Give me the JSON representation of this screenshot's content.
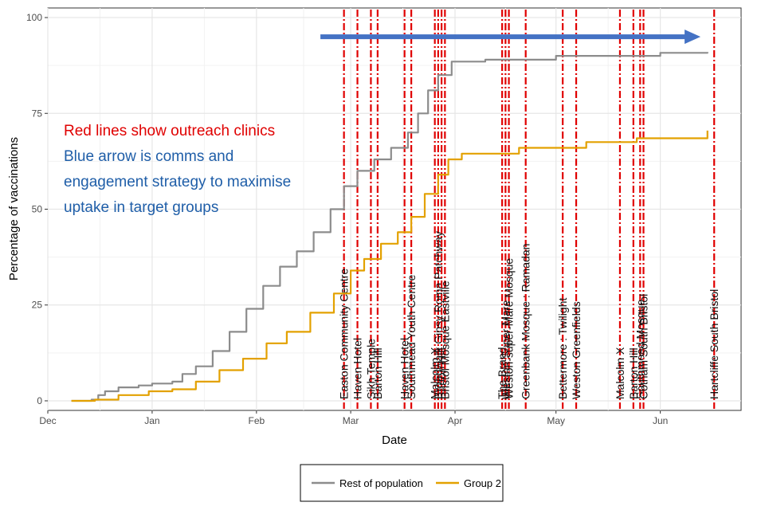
{
  "chart_data": {
    "type": "line",
    "title": "",
    "xlabel": "Date",
    "ylabel": "Percentage of vaccinations",
    "x_range": [
      "2020-12-01",
      "2021-06-25"
    ],
    "ylim": [
      -2.5,
      102.5
    ],
    "x_ticks": [
      {
        "date": "2020-12-01",
        "label": "Dec"
      },
      {
        "date": "2021-01-01",
        "label": "Jan"
      },
      {
        "date": "2021-02-01",
        "label": "Feb"
      },
      {
        "date": "2021-03-01",
        "label": "Mar"
      },
      {
        "date": "2021-04-01",
        "label": "Apr"
      },
      {
        "date": "2021-05-01",
        "label": "May"
      },
      {
        "date": "2021-06-01",
        "label": "Jun"
      }
    ],
    "y_ticks": [
      0,
      25,
      50,
      75,
      100
    ],
    "grid": true,
    "legend_position": "bottom",
    "series": [
      {
        "name": "Rest of population",
        "color": "#8c8c8c",
        "points": [
          [
            "2020-12-08",
            0
          ],
          [
            "2020-12-14",
            0.3
          ],
          [
            "2020-12-16",
            1.5
          ],
          [
            "2020-12-18",
            2.5
          ],
          [
            "2020-12-22",
            3.5
          ],
          [
            "2020-12-28",
            4
          ],
          [
            "2021-01-01",
            4.5
          ],
          [
            "2021-01-07",
            5
          ],
          [
            "2021-01-10",
            7
          ],
          [
            "2021-01-14",
            9
          ],
          [
            "2021-01-19",
            13
          ],
          [
            "2021-01-24",
            18
          ],
          [
            "2021-01-29",
            24
          ],
          [
            "2021-02-03",
            30
          ],
          [
            "2021-02-08",
            35
          ],
          [
            "2021-02-13",
            39
          ],
          [
            "2021-02-18",
            44
          ],
          [
            "2021-02-23",
            50
          ],
          [
            "2021-02-27",
            56
          ],
          [
            "2021-03-03",
            60
          ],
          [
            "2021-03-08",
            63
          ],
          [
            "2021-03-13",
            66
          ],
          [
            "2021-03-18",
            70
          ],
          [
            "2021-03-21",
            75
          ],
          [
            "2021-03-24",
            81
          ],
          [
            "2021-03-27",
            85
          ],
          [
            "2021-03-31",
            88.5
          ],
          [
            "2021-04-10",
            89
          ],
          [
            "2021-05-01",
            90
          ],
          [
            "2021-06-01",
            90.8
          ],
          [
            "2021-06-15",
            91
          ]
        ]
      },
      {
        "name": "Group 2",
        "color": "#e3a100",
        "points": [
          [
            "2020-12-08",
            0
          ],
          [
            "2020-12-15",
            0.3
          ],
          [
            "2020-12-22",
            1.5
          ],
          [
            "2020-12-31",
            2.5
          ],
          [
            "2021-01-07",
            3
          ],
          [
            "2021-01-14",
            5
          ],
          [
            "2021-01-21",
            8
          ],
          [
            "2021-01-28",
            11
          ],
          [
            "2021-02-04",
            15
          ],
          [
            "2021-02-10",
            18
          ],
          [
            "2021-02-17",
            23
          ],
          [
            "2021-02-24",
            28
          ],
          [
            "2021-03-01",
            34
          ],
          [
            "2021-03-05",
            37
          ],
          [
            "2021-03-10",
            41
          ],
          [
            "2021-03-15",
            44
          ],
          [
            "2021-03-19",
            48
          ],
          [
            "2021-03-23",
            54
          ],
          [
            "2021-03-27",
            59
          ],
          [
            "2021-03-30",
            63
          ],
          [
            "2021-04-03",
            64.5
          ],
          [
            "2021-04-20",
            66
          ],
          [
            "2021-05-10",
            67.5
          ],
          [
            "2021-05-25",
            68.5
          ],
          [
            "2021-06-15",
            70.5
          ]
        ]
      }
    ],
    "outreach_clinics": {
      "color": "#e00000",
      "clinics": [
        {
          "date": "2021-02-27",
          "label": "Easton Community Centre"
        },
        {
          "date": "2021-03-03",
          "label": "Haven Hotel"
        },
        {
          "date": "2021-03-07",
          "label": "Sikh Temple"
        },
        {
          "date": "2021-03-09",
          "label": "Barton Hill"
        },
        {
          "date": "2021-03-17",
          "label": "Haven Hotel"
        },
        {
          "date": "2021-03-19",
          "label": "Southmead Youth Centre"
        },
        {
          "date": "2021-03-26",
          "label": "Malcolm X"
        },
        {
          "date": "2021-03-27",
          "label": "Broadwalk Gipsy Roma Patchway"
        },
        {
          "date": "2021-03-28",
          "label": "Barton Hill"
        },
        {
          "date": "2021-03-29",
          "label": "Bristol Mosque Eastville"
        },
        {
          "date": "2021-04-15",
          "label": "The Brand"
        },
        {
          "date": "2021-04-16",
          "label": "Weston Super Mare"
        },
        {
          "date": "2021-04-17",
          "label": "Weston-super-Mare Mosque"
        },
        {
          "date": "2021-04-22",
          "label": "Greenbank Mosque : Ramadan"
        },
        {
          "date": "2021-05-03",
          "label": "Bettermore : Twilight"
        },
        {
          "date": "2021-05-07",
          "label": "Weston Greenfields"
        },
        {
          "date": "2021-05-20",
          "label": "Malcolm X"
        },
        {
          "date": "2021-05-24",
          "label": "Barton Hill"
        },
        {
          "date": "2021-05-26",
          "label": "Southmead Mosque"
        },
        {
          "date": "2021-05-27",
          "label": "Cotham South Bristol"
        },
        {
          "date": "2021-06-17",
          "label": "Hartcliffe South Bristol"
        }
      ]
    },
    "comms_arrow": {
      "from": "2021-02-20",
      "to": "2021-06-12",
      "y": 95,
      "color": "#4472c4"
    },
    "annotations": [
      {
        "text": "Red lines show outreach clinics",
        "color": "#e00000"
      },
      {
        "text": "Blue arrow is comms and",
        "color": "#1f5ea8"
      },
      {
        "text": "engagement strategy to maximise",
        "color": "#1f5ea8"
      },
      {
        "text": "uptake in target groups",
        "color": "#1f5ea8"
      }
    ]
  }
}
